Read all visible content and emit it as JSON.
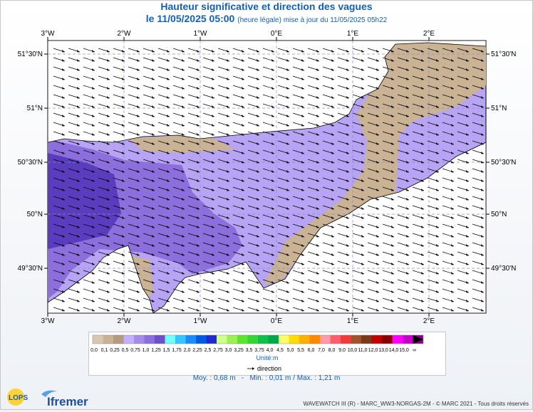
{
  "title": "Hauteur significative et direction des vagues",
  "subtitle_main": "le 11/05/2025 05:00",
  "subtitle_note": "(heure légale) mise à jour du 11/05/2025 05h22",
  "axes": {
    "lon_ticks": [
      "3°W",
      "2°W",
      "1°W",
      "0°E",
      "1°E",
      "2°E"
    ],
    "lat_ticks": [
      "51°30'N",
      "51°N",
      "50°30'N",
      "50°N",
      "49°30'N"
    ]
  },
  "legend": {
    "colors": [
      "#d6c9b4",
      "#c9b394",
      "#b49a80",
      "#c2b0ff",
      "#a68ce8",
      "#8c6edc",
      "#6e4fc8",
      "#6fffff",
      "#34c7ff",
      "#1a8cff",
      "#005ae6",
      "#1f2bd0",
      "#cfff8c",
      "#9bf055",
      "#5ce62b",
      "#33d633",
      "#0fbf46",
      "#00a84b",
      "#fffb6b",
      "#ffdd00",
      "#ffb000",
      "#ff8a00",
      "#ff9aaa",
      "#ff5f6d",
      "#f23a3a",
      "#a0522d",
      "#7a3a1a",
      "#c20000",
      "#8c0000",
      "#ff00ff",
      "#c800c8",
      "#8c008c"
    ],
    "labels": [
      "0,0",
      "0,1",
      "0,25",
      "0,5",
      "0,75",
      "1,0",
      "1,25",
      "1,5",
      "1,75",
      "2,0",
      "2,25",
      "2,5",
      "2,75",
      "3,0",
      "3,25",
      "3,5",
      "3,75",
      "4,0",
      "4,5",
      "5,0",
      "5,5",
      "6,0",
      "7,0",
      "8,0",
      "9,0",
      "10,0",
      "11,0",
      "12,0",
      "13,0",
      "14,0",
      "15,0",
      "∞"
    ],
    "unit": "Unité:m",
    "arrow_label": "direction"
  },
  "stats": {
    "moy": "Moy. : 0,68 m",
    "min": "Min. : 0,01 m",
    "max": "Max. : 1,21 m"
  },
  "credits": "WAVEWATCH III (R) - MARC_WW3-NORGAS-2M - © MARC 2021 - Tous droits réservés",
  "logos": {
    "lops": "LOPS",
    "ifremer": "Ifremer"
  },
  "colors": {
    "land": "#ffffff",
    "shallow": "#c9b394",
    "sea_light": "#b8a4f5",
    "sea_mid": "#8c6edc",
    "sea_dark": "#5a3cbf",
    "accent": "#1560b5"
  }
}
